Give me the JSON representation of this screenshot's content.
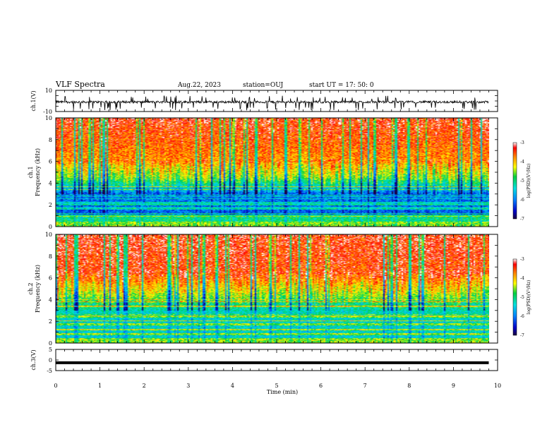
{
  "header": {
    "title": "VLF Spectra",
    "date": "Aug.22, 2023",
    "station": "station=OUJ",
    "start": "start  UT =   17: 50: 0"
  },
  "chart_data": [
    {
      "type": "line",
      "ylabel": "ch.1(V)",
      "ylim": [
        -10,
        10
      ],
      "yticks": [
        "10",
        "-10"
      ],
      "xlim": [
        0,
        10
      ],
      "description_values": {
        "baseline": -1,
        "spike_range": [
          -9,
          5
        ]
      }
    },
    {
      "type": "heatmap",
      "ylabel_line1": "ch.1",
      "ylabel_line2": "Frequency (kHz)",
      "ylim": [
        0,
        10
      ],
      "yticks": [
        "0",
        "2",
        "4",
        "6",
        "8",
        "10"
      ],
      "xlim": [
        0,
        9.8
      ],
      "colorbar": {
        "label": "log(PSD)(V²/Hz)",
        "range": [
          -7,
          -3
        ],
        "ticks": [
          "-3",
          "-4",
          "-5",
          "-6",
          "-7"
        ]
      }
    },
    {
      "type": "heatmap",
      "ylabel_line1": "ch.2",
      "ylabel_line2": "Frequency (kHz)",
      "ylim": [
        0,
        10
      ],
      "yticks": [
        "0",
        "2",
        "4",
        "6",
        "8",
        "10"
      ],
      "xlim": [
        0,
        9.8
      ],
      "colorbar": {
        "label": "log(PSD)(V²/Hz)",
        "range": [
          -7,
          -3
        ],
        "ticks": [
          "-3",
          "-4",
          "-5",
          "-6",
          "-7"
        ]
      }
    },
    {
      "type": "line",
      "ylabel": "ch.3(V)",
      "ylim": [
        -5,
        5
      ],
      "yticks": [
        "5",
        "0",
        "-5"
      ],
      "xlim": [
        0,
        9.8
      ],
      "values": {
        "constant": -1.3
      }
    }
  ],
  "xaxis": {
    "label": "Time (min)",
    "range": [
      0,
      10
    ],
    "ticks": [
      "0",
      "1",
      "2",
      "3",
      "4",
      "5",
      "6",
      "7",
      "8",
      "9",
      "10"
    ]
  }
}
